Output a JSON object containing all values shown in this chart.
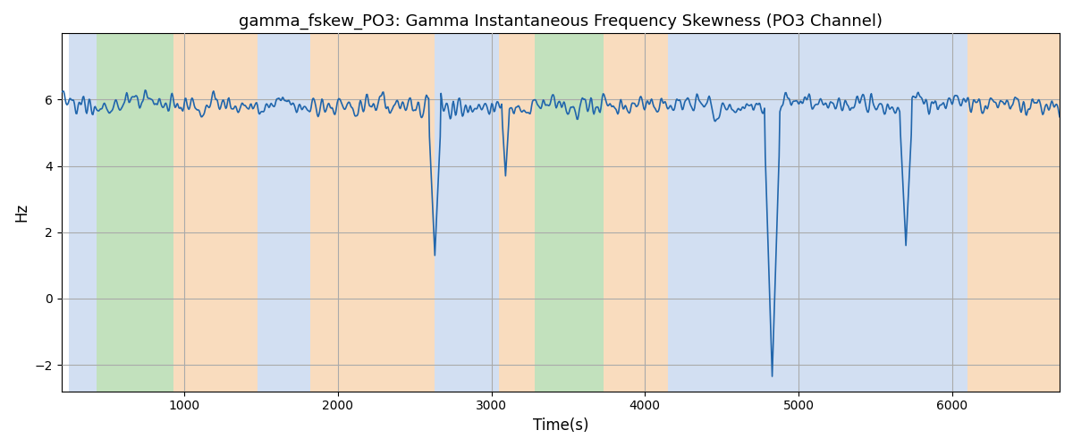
{
  "title": "gamma_fskew_PO3: Gamma Instantaneous Frequency Skewness (PO3 Channel)",
  "xlabel": "Time(s)",
  "ylabel": "Hz",
  "xlim": [
    200,
    6700
  ],
  "ylim": [
    -2.8,
    8.0
  ],
  "yticks": [
    -2,
    0,
    2,
    4,
    6
  ],
  "xticks": [
    1000,
    2000,
    3000,
    4000,
    5000,
    6000
  ],
  "line_color": "#2166ac",
  "line_width": 1.2,
  "grid_color": "#aaaaaa",
  "grid_lw": 0.8,
  "background_regions": [
    {
      "xstart": 250,
      "xend": 430,
      "color": "#aec6e8",
      "alpha": 0.55
    },
    {
      "xstart": 430,
      "xend": 930,
      "color": "#90c987",
      "alpha": 0.55
    },
    {
      "xstart": 930,
      "xend": 1480,
      "color": "#f5c08a",
      "alpha": 0.55
    },
    {
      "xstart": 1480,
      "xend": 1820,
      "color": "#aec6e8",
      "alpha": 0.55
    },
    {
      "xstart": 1820,
      "xend": 2630,
      "color": "#f5c08a",
      "alpha": 0.55
    },
    {
      "xstart": 2630,
      "xend": 3050,
      "color": "#aec6e8",
      "alpha": 0.55
    },
    {
      "xstart": 3050,
      "xend": 3280,
      "color": "#f5c08a",
      "alpha": 0.55
    },
    {
      "xstart": 3280,
      "xend": 3730,
      "color": "#90c987",
      "alpha": 0.55
    },
    {
      "xstart": 3730,
      "xend": 4150,
      "color": "#f5c08a",
      "alpha": 0.55
    },
    {
      "xstart": 4150,
      "xend": 6100,
      "color": "#aec6e8",
      "alpha": 0.55
    },
    {
      "xstart": 6100,
      "xend": 6700,
      "color": "#f5c08a",
      "alpha": 0.55
    }
  ],
  "figsize": [
    12.0,
    5.0
  ],
  "dpi": 100,
  "title_fontsize": 13,
  "label_fontsize": 12
}
